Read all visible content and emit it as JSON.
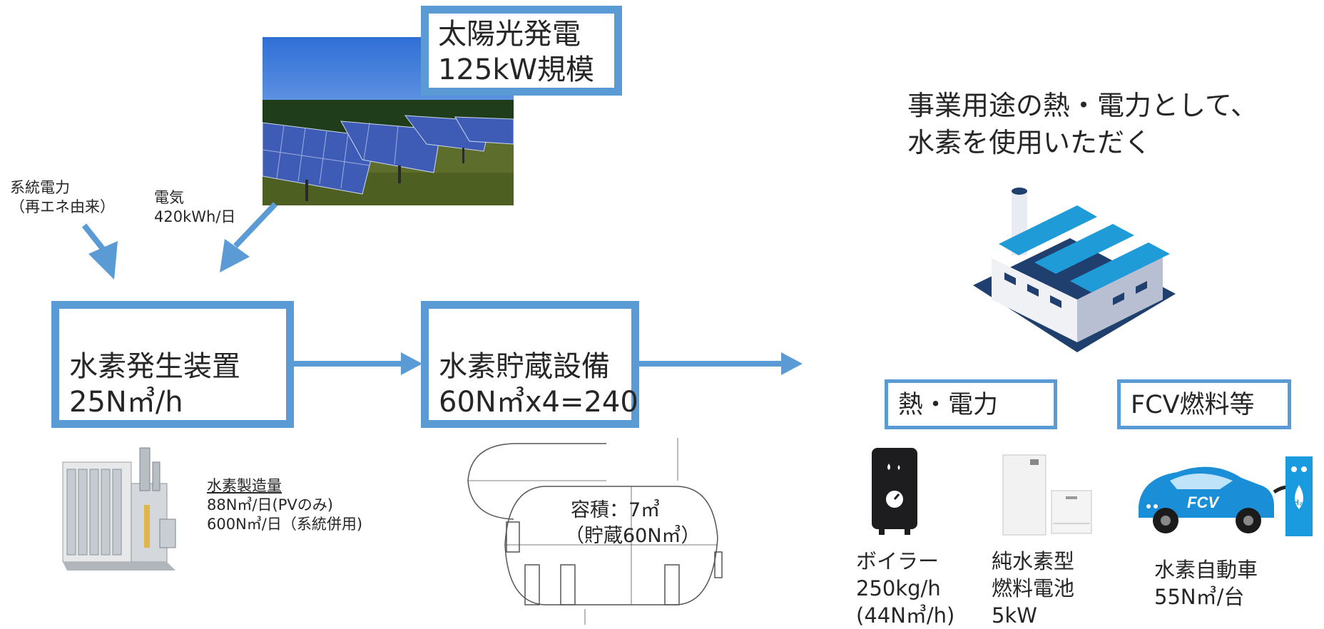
{
  "solar": {
    "line1": "太陽光発電",
    "line2": "125kW規模"
  },
  "grid_power": {
    "line1": "系統電力",
    "line2": "（再エネ由来）"
  },
  "electricity": {
    "line1": "電気",
    "line2": "420kWh/日"
  },
  "generator": {
    "line1": "水素発生装置",
    "line2": "25N㎥/h"
  },
  "storage": {
    "line1": "水素貯蔵設備",
    "line2": "60N㎥x4=240"
  },
  "production": {
    "title": "水素製造量",
    "line1": "88N㎥/日(PVのみ)",
    "line2": "600N㎥/日（系統併用)"
  },
  "tank": {
    "line1": "容積：7㎥",
    "line2": "（貯蔵60N㎥）"
  },
  "usage": {
    "line1": "事業用途の熱・電力として、",
    "line2": "水素を使用いただく"
  },
  "heat_power": {
    "label": "熱・電力"
  },
  "fcv_fuel": {
    "label": "FCV燃料等"
  },
  "boiler": {
    "line1": "ボイラー",
    "line2": "250kg/h",
    "line3": "(44N㎥/h)"
  },
  "fuel_cell": {
    "line1": "純水素型",
    "line2": "燃料電池",
    "line3": "5kW"
  },
  "fcv": {
    "line1": "水素自動車",
    "line2": "55N㎥/台",
    "badge": "FCV",
    "h2": "H₂"
  },
  "colors": {
    "accent": "#5b9bd5",
    "factory_roof": "#1f9bd7",
    "factory_shadow": "#1f3f6e"
  }
}
